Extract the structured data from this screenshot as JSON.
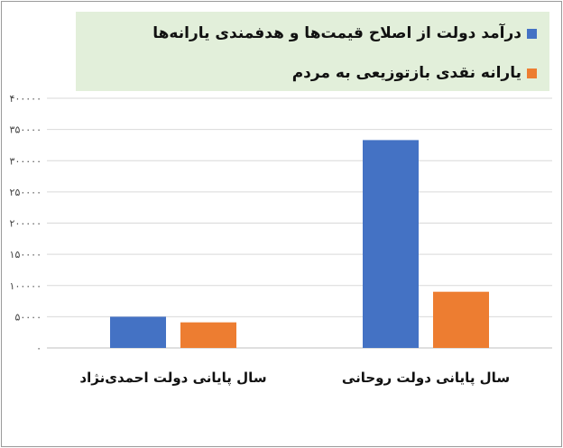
{
  "chart_data": {
    "type": "bar",
    "title": "",
    "xlabel": "",
    "ylabel": "",
    "categories": [
      "سال پایانی دولت روحانی",
      "سال پایانی دولت احمدی‌نژاد"
    ],
    "series": [
      {
        "name": "درآمد دولت از اصلاح قیمت‌ها و هدفمندی یارانه‌ها",
        "color": "#4472c4",
        "values": [
          333000,
          50000
        ]
      },
      {
        "name": "یارانه نقدی بازتوزیعی به مردم",
        "color": "#ed7d31",
        "values": [
          90000,
          41000
        ]
      }
    ],
    "ylim": [
      0,
      400000
    ],
    "yticks": [
      0,
      50000,
      100000,
      150000,
      200000,
      250000,
      300000,
      350000,
      400000
    ],
    "ytick_labels": [
      "۰",
      "۵۰۰۰۰",
      "۱۰۰۰۰۰",
      "۱۵۰۰۰۰",
      "۲۰۰۰۰۰",
      "۲۵۰۰۰۰",
      "۳۰۰۰۰۰",
      "۳۵۰۰۰۰",
      "۴۰۰۰۰۰"
    ],
    "grid": true,
    "legend_position": "top"
  }
}
